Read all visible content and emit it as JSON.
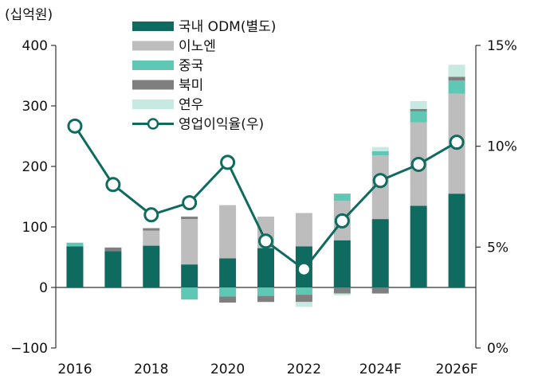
{
  "chart_data": {
    "type": "bar",
    "stacked": true,
    "y_unit_label": "(십억원)",
    "categories": [
      "2016",
      "2017",
      "2018",
      "2019",
      "2020",
      "2021",
      "2022",
      "2023",
      "2024F",
      "2025F",
      "2026F"
    ],
    "x_tick_labels": [
      "2016",
      "2018",
      "2020",
      "2022",
      "2024F",
      "2026F"
    ],
    "ylim": [
      -100,
      400
    ],
    "yticks": [
      -100,
      0,
      100,
      200,
      300,
      400
    ],
    "ytick_labels": [
      "−100",
      "0",
      "100",
      "200",
      "300",
      "400"
    ],
    "y2lim": [
      0,
      15
    ],
    "y2ticks": [
      0,
      5,
      10,
      15
    ],
    "y2tick_labels": [
      "0%",
      "5%",
      "10%",
      "15%"
    ],
    "series": [
      {
        "name": "국내 ODM(별도)",
        "color": "#0f6b5f",
        "values": [
          68,
          60,
          69,
          38,
          48,
          65,
          68,
          78,
          113,
          135,
          155
        ]
      },
      {
        "name": "이노엔",
        "color": "#bdbdbd",
        "values": [
          0,
          0,
          25,
          75,
          88,
          52,
          55,
          65,
          105,
          138,
          165
        ]
      },
      {
        "name": "중국",
        "color": "#5fc8b4",
        "values": [
          6,
          0,
          0,
          -20,
          -15,
          -14,
          -12,
          12,
          7,
          18,
          22
        ]
      },
      {
        "name": "북미",
        "color": "#7f7f7f",
        "values": [
          0,
          6,
          4,
          4,
          -10,
          -10,
          -12,
          -10,
          -10,
          4,
          6
        ]
      },
      {
        "name": "연우",
        "color": "#c6e9e1",
        "values": [
          0,
          0,
          0,
          0,
          0,
          0,
          -8,
          -3,
          7,
          13,
          20
        ]
      }
    ],
    "line": {
      "name": "영업이익율(우)",
      "color": "#0f6b5f",
      "values": [
        11.0,
        8.1,
        6.6,
        7.2,
        9.2,
        5.3,
        3.9,
        6.3,
        8.3,
        9.1,
        10.2
      ]
    },
    "legend_position": "top-center",
    "grid": false
  }
}
